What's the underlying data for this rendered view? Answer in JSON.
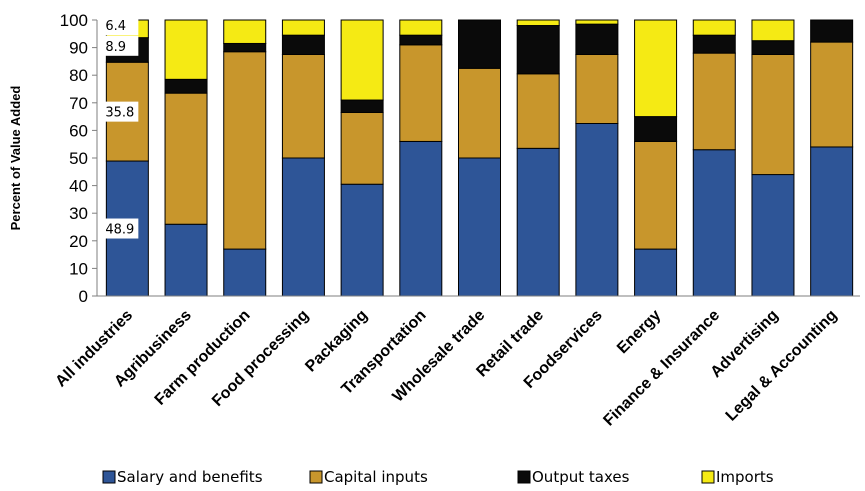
{
  "chart_data": {
    "type": "bar",
    "stacked": true,
    "ylabel": "Percent of Value Added",
    "ylim": [
      0,
      100
    ],
    "yticks": [
      0,
      10,
      20,
      30,
      40,
      50,
      60,
      70,
      80,
      90,
      100
    ],
    "categories": [
      "All industries",
      "Agribusiness",
      "Farm production",
      "Food processing",
      "Packaging",
      "Transportation",
      "Wholesale trade",
      "Retail trade",
      "Foodservices",
      "Energy",
      "Finance & Insurance",
      "Advertising",
      "Legal & Accounting"
    ],
    "series": [
      {
        "name": "Salary and benefits",
        "color": "#2E5597",
        "values": [
          48.9,
          26,
          17,
          50,
          40.5,
          56,
          50,
          53.5,
          62.5,
          17,
          53,
          44,
          54
        ]
      },
      {
        "name": "Capital inputs",
        "color": "#C8962C",
        "values": [
          35.8,
          47.5,
          71.5,
          37.5,
          26,
          35,
          32.5,
          27,
          25,
          39,
          35,
          43.5,
          38
        ]
      },
      {
        "name": "Output taxes",
        "color": "#0A0A0A",
        "values": [
          8.9,
          5,
          3,
          7,
          4.5,
          3.5,
          17.5,
          17.5,
          11,
          9,
          6.5,
          5,
          8
        ]
      },
      {
        "name": "Imports",
        "color": "#F5EA14",
        "values": [
          6.4,
          21.5,
          8.5,
          5.5,
          29,
          5.5,
          0,
          2,
          1.5,
          35,
          5.5,
          7.5,
          0
        ]
      }
    ],
    "data_labels": [
      "48.9",
      "35.8",
      "8.9",
      "6.4"
    ],
    "legend_position": "bottom",
    "grid": false
  }
}
